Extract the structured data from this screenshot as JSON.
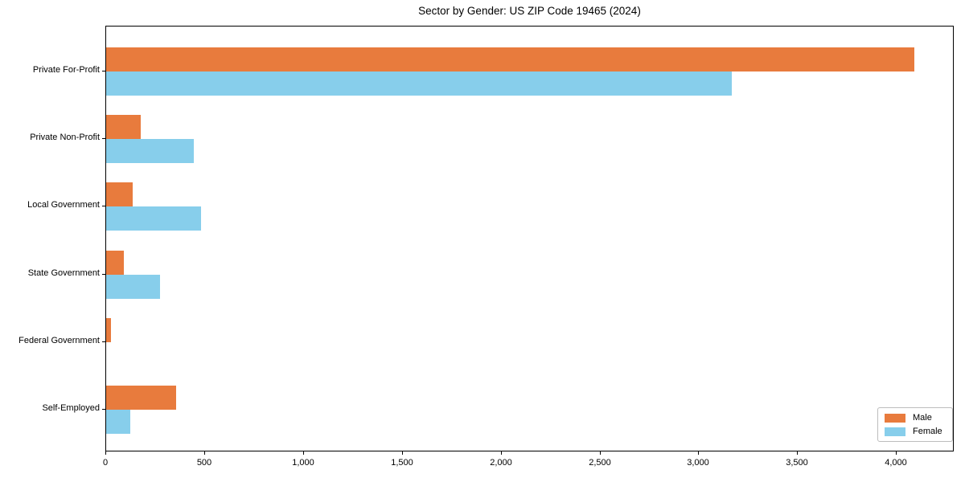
{
  "chart_data": {
    "type": "bar",
    "orientation": "horizontal",
    "title": "Sector by Gender: US ZIP Code 19465 (2024)",
    "xlabel": "",
    "ylabel": "",
    "categories": [
      "Private For-Profit",
      "Private Non-Profit",
      "Local Government",
      "State Government",
      "Federal Government",
      "Self-Employed"
    ],
    "series": [
      {
        "name": "Male",
        "color": "#e87b3d",
        "values": [
          4088,
          175,
          135,
          90,
          24,
          354
        ]
      },
      {
        "name": "Female",
        "color": "#87ceeb",
        "values": [
          3164,
          443,
          482,
          274,
          0,
          123
        ]
      }
    ],
    "xlim": [
      0,
      4292
    ],
    "x_ticks": [
      0,
      500,
      1000,
      1500,
      2000,
      2500,
      3000,
      3500,
      4000
    ],
    "x_tick_labels": [
      "0",
      "500",
      "1,000",
      "1,500",
      "2,000",
      "2,500",
      "3,000",
      "3,500",
      "4,000"
    ],
    "grid": false,
    "legend_position": "lower right",
    "frame": "full-box"
  }
}
